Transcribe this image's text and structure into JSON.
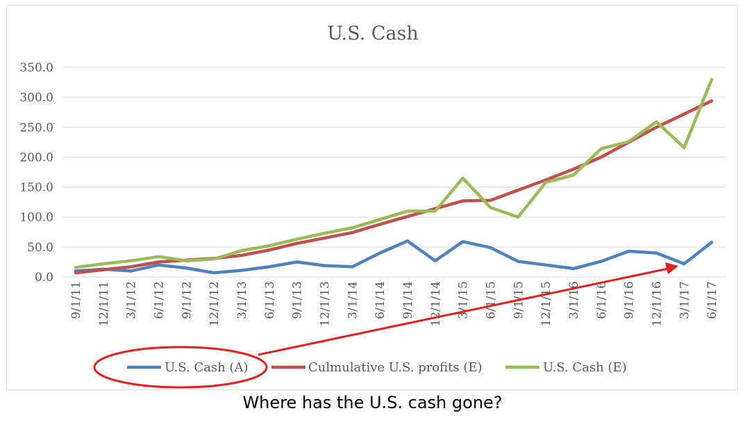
{
  "caption": "Where has the U.S. cash gone?",
  "colors": {
    "cash_a": "#4f81bd",
    "profits_e": "#c0504d",
    "cash_e": "#9bbb59",
    "annotation": "#e41e1e",
    "grid": "#d9d9d9",
    "text": "#595959"
  },
  "chart_data": {
    "type": "line",
    "title": "U.S. Cash",
    "xlabel": "",
    "ylabel": "",
    "ylim": [
      0,
      350
    ],
    "yticks": [
      "0.0",
      "50.0",
      "100.0",
      "150.0",
      "200.0",
      "250.0",
      "300.0",
      "350.0"
    ],
    "grid": true,
    "legend_position": "bottom",
    "categories": [
      "9/1/11",
      "12/1/11",
      "3/1/12",
      "6/1/12",
      "9/1/12",
      "12/1/12",
      "3/1/13",
      "6/1/13",
      "9/1/13",
      "12/1/13",
      "3/1/14",
      "6/1/14",
      "9/1/14",
      "12/1/14",
      "3/1/15",
      "6/1/15",
      "9/1/15",
      "12/1/15",
      "3/1/16",
      "6/1/16",
      "9/1/16",
      "12/1/16",
      "3/1/17",
      "6/1/17"
    ],
    "series": [
      {
        "name": "U.S. Cash (A)",
        "color_key": "cash_a",
        "values": [
          10,
          13,
          10,
          20,
          15,
          7,
          11,
          17,
          25,
          19,
          17,
          40,
          60,
          27,
          59,
          49,
          26,
          20,
          14,
          26,
          43,
          40,
          22,
          58
        ]
      },
      {
        "name": "Culmulative U.S. profits (E)",
        "color_key": "profits_e",
        "values": [
          7,
          12,
          17,
          25,
          28,
          31,
          36,
          45,
          56,
          65,
          74,
          88,
          101,
          114,
          127,
          128,
          145,
          162,
          180,
          200,
          225,
          250,
          272,
          294
        ]
      },
      {
        "name": "U.S. Cash (E)",
        "color_key": "cash_e",
        "values": [
          16,
          22,
          27,
          34,
          27,
          30,
          44,
          52,
          63,
          73,
          82,
          96,
          110,
          110,
          165,
          116,
          100,
          158,
          170,
          214,
          226,
          259,
          216,
          330
        ]
      }
    ],
    "annotation": {
      "type": "ellipse-and-arrow",
      "target_series": "U.S. Cash (A)"
    }
  }
}
